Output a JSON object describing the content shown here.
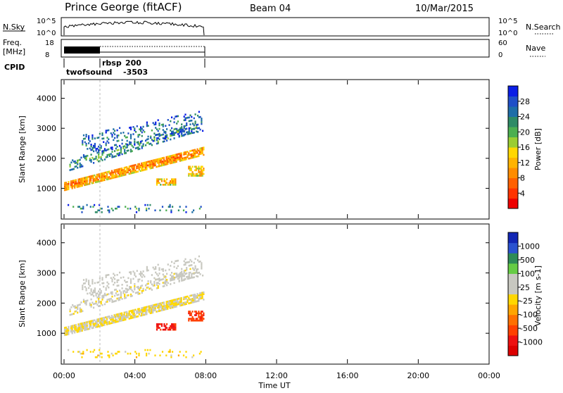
{
  "header": {
    "station": "Prince George (fitACF)",
    "beam": "Beam 04",
    "date": "10/Mar/2015"
  },
  "nsky_panel": {
    "left_label": "N.Sky",
    "right_label": "N.Search",
    "left_ticks": [
      "10^5",
      "10^0"
    ],
    "right_ticks": [
      "10^5",
      "10^0"
    ]
  },
  "freq_panel": {
    "left_label_1": "Freq.",
    "left_label_2": "[MHz]",
    "right_label": "Nave",
    "left_ticks": [
      "18",
      "8"
    ],
    "right_ticks": [
      "60",
      "0"
    ]
  },
  "cpid_row": {
    "label": "CPID",
    "programs": [
      {
        "name": "twofsound",
        "id": "-3503"
      },
      {
        "name": "rbsp",
        "id": "200"
      }
    ]
  },
  "x_axis": {
    "label": "Time UT",
    "ticks": [
      "00:00",
      "04:00",
      "08:00",
      "12:00",
      "16:00",
      "20:00",
      "00:00"
    ]
  },
  "colorbars": {
    "power": {
      "label": "Power [dB]",
      "ticks": [
        "28",
        "24",
        "20",
        "16",
        "12",
        "8",
        "4"
      ],
      "colors": [
        "#0a1ee6",
        "#1f4fc8",
        "#1e6ea8",
        "#2e8b66",
        "#4caf50",
        "#9acd32",
        "#ffd700",
        "#ffb300",
        "#ff8c00",
        "#ff6000",
        "#ff3300",
        "#ee0000"
      ]
    },
    "velocity": {
      "label": "Velocity [m s-1]",
      "ticks": [
        "1000",
        "500",
        "100",
        "25",
        "-25",
        "-100",
        "-500",
        "-1000"
      ],
      "colors": [
        "#1226b4",
        "#2a52d0",
        "#2e8b57",
        "#66cc44",
        "#c8c8c0",
        "#c8c8c0",
        "#ffd700",
        "#ffa500",
        "#ff7000",
        "#ff4000",
        "#ee1010",
        "#dd0000"
      ]
    }
  },
  "chart_data": [
    {
      "type": "heatmap",
      "title": "Power",
      "xlabel": "Time UT",
      "ylabel": "Slant Range [km]",
      "xlim": [
        "00:00",
        "24:00"
      ],
      "ylim": [
        0,
        4600
      ],
      "yticks": [
        1000,
        2000,
        3000,
        4000
      ],
      "data_extent_hours": [
        0,
        8
      ],
      "colorbar": {
        "label": "Power [dB]",
        "range": [
          0,
          32
        ]
      }
    },
    {
      "type": "heatmap",
      "title": "Velocity",
      "xlabel": "Time UT",
      "ylabel": "Slant Range [km]",
      "xlim": [
        "00:00",
        "24:00"
      ],
      "ylim": [
        0,
        4600
      ],
      "yticks": [
        1000,
        2000,
        3000,
        4000
      ],
      "data_extent_hours": [
        0,
        8
      ],
      "colorbar": {
        "label": "Velocity [m s-1]",
        "range": [
          -1000,
          1000
        ]
      }
    }
  ]
}
